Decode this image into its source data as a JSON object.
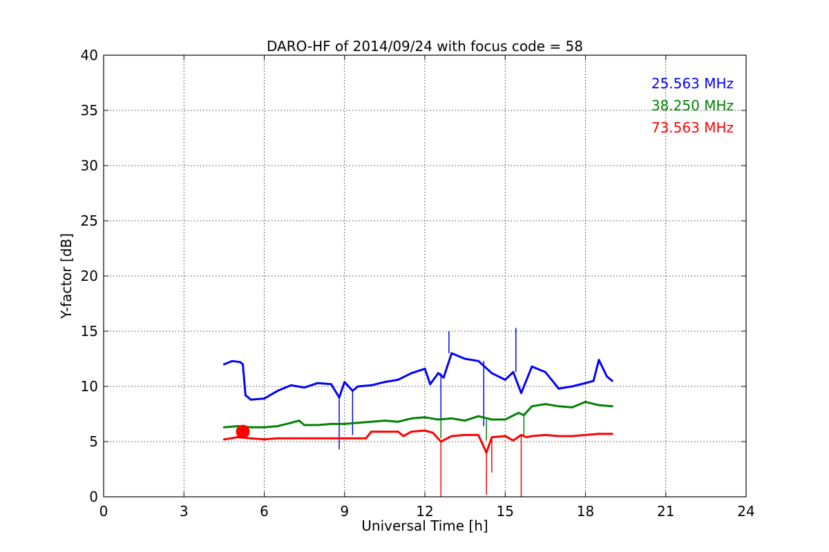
{
  "chart_data": {
    "type": "line",
    "title": "DARO-HF of 2014/09/24 with focus code = 58",
    "xlabel": "Universal Time [h]",
    "ylabel": "Y-factor [dB]",
    "xlim": [
      0,
      24
    ],
    "ylim": [
      0,
      40
    ],
    "xticks": [
      0,
      3,
      6,
      9,
      12,
      15,
      18,
      21,
      24
    ],
    "yticks": [
      0,
      5,
      10,
      15,
      20,
      25,
      30,
      35,
      40
    ],
    "grid": true,
    "legend_position": "top-right",
    "series": [
      {
        "name": "25.563 MHz",
        "color": "#0000ff",
        "x": [
          4.5,
          4.8,
          5.1,
          5.2,
          5.3,
          5.5,
          6.0,
          6.5,
          7.0,
          7.5,
          8.0,
          8.5,
          8.8,
          9.0,
          9.3,
          9.5,
          10.0,
          10.5,
          11.0,
          11.5,
          12.0,
          12.2,
          12.5,
          12.7,
          13.0,
          13.5,
          14.0,
          14.5,
          15.0,
          15.3,
          15.6,
          16.0,
          16.5,
          17.0,
          17.5,
          18.0,
          18.3,
          18.5,
          18.8,
          19.0
        ],
        "y": [
          12.0,
          12.3,
          12.2,
          12.0,
          9.2,
          8.8,
          8.9,
          9.6,
          10.1,
          9.9,
          10.3,
          10.2,
          9.0,
          10.4,
          9.6,
          10.0,
          10.1,
          10.4,
          10.6,
          11.2,
          11.6,
          10.2,
          11.2,
          10.8,
          13.0,
          12.5,
          12.3,
          11.2,
          10.6,
          11.3,
          9.4,
          11.8,
          11.3,
          9.8,
          10.0,
          10.3,
          10.5,
          12.4,
          10.9,
          10.5
        ]
      },
      {
        "name": "38.250 MHz",
        "color": "#008000",
        "x": [
          4.5,
          5.0,
          5.5,
          6.0,
          6.5,
          7.0,
          7.3,
          7.5,
          8.0,
          8.5,
          9.0,
          9.5,
          10.0,
          10.5,
          11.0,
          11.5,
          12.0,
          12.5,
          13.0,
          13.5,
          14.0,
          14.5,
          15.0,
          15.5,
          15.7,
          16.0,
          16.5,
          17.0,
          17.5,
          18.0,
          18.5,
          19.0
        ],
        "y": [
          6.3,
          6.4,
          6.3,
          6.3,
          6.4,
          6.7,
          6.9,
          6.5,
          6.5,
          6.6,
          6.6,
          6.7,
          6.8,
          6.9,
          6.8,
          7.1,
          7.2,
          7.0,
          7.1,
          6.9,
          7.3,
          7.0,
          7.0,
          7.6,
          7.4,
          8.2,
          8.4,
          8.2,
          8.1,
          8.6,
          8.3,
          8.2
        ]
      },
      {
        "name": "73.563 MHz",
        "color": "#ff0000",
        "x": [
          4.5,
          5.0,
          5.5,
          6.0,
          6.5,
          7.0,
          7.5,
          8.0,
          8.5,
          9.0,
          9.5,
          9.8,
          10.0,
          10.5,
          11.0,
          11.2,
          11.5,
          12.0,
          12.3,
          12.6,
          13.0,
          13.5,
          14.0,
          14.3,
          14.5,
          15.0,
          15.3,
          15.6,
          15.8,
          16.0,
          16.5,
          17.0,
          17.5,
          18.0,
          18.5,
          19.0
        ],
        "y": [
          5.2,
          5.4,
          5.3,
          5.2,
          5.3,
          5.3,
          5.3,
          5.3,
          5.3,
          5.3,
          5.3,
          5.3,
          5.9,
          5.9,
          5.9,
          5.5,
          5.9,
          6.0,
          5.8,
          5.0,
          5.5,
          5.6,
          5.6,
          4.0,
          5.4,
          5.5,
          5.1,
          5.6,
          5.4,
          5.5,
          5.6,
          5.5,
          5.5,
          5.6,
          5.7,
          5.7
        ]
      }
    ],
    "spikes": [
      {
        "series": 0,
        "x": 8.8,
        "y": 4.3
      },
      {
        "series": 0,
        "x": 9.3,
        "y": 5.6
      },
      {
        "series": 0,
        "x": 12.6,
        "y": 6.6
      },
      {
        "series": 0,
        "x": 12.9,
        "y": 15.0
      },
      {
        "series": 0,
        "x": 15.4,
        "y": 15.3
      },
      {
        "series": 0,
        "x": 14.2,
        "y": 6.4
      },
      {
        "series": 1,
        "x": 12.6,
        "y": 5.3
      },
      {
        "series": 1,
        "x": 14.3,
        "y": 5.1
      },
      {
        "series": 1,
        "x": 15.7,
        "y": 5.6
      },
      {
        "series": 2,
        "x": 12.6,
        "y": 0.0
      },
      {
        "series": 2,
        "x": 14.3,
        "y": 0.2
      },
      {
        "series": 2,
        "x": 15.6,
        "y": 0.0
      },
      {
        "series": 2,
        "x": 14.5,
        "y": 2.2
      }
    ],
    "marker": {
      "x": 5.2,
      "y": 5.9,
      "color": "#ff0000"
    }
  }
}
